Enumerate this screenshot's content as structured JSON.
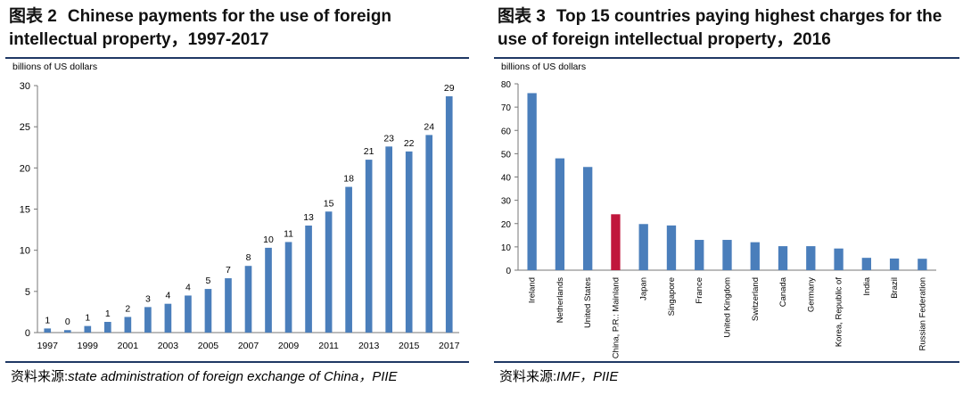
{
  "left_panel": {
    "figure_number": "图表 2",
    "title": "Chinese payments for the use of foreign intellectual property，1997-2017",
    "source_prefix": "资料来源:",
    "source_text": "state administration of foreign exchange of China，PIIE"
  },
  "right_panel": {
    "figure_number": "图表 3",
    "title": "Top 15 countries paying highest charges for the use of foreign intellectual property，2016",
    "source_prefix": "资料来源:",
    "source_text": "IMF，PIIE"
  },
  "colors": {
    "bar": "#4a7ebb",
    "highlight": "#c0163c",
    "rule": "#1f3864"
  },
  "chart_data": [
    {
      "type": "bar",
      "ylabel": "billions of US dollars",
      "ylim": [
        0,
        30
      ],
      "yticks": [
        0,
        5,
        10,
        15,
        20,
        25,
        30
      ],
      "x": [
        1997,
        1998,
        1999,
        2000,
        2001,
        2002,
        2003,
        2004,
        2005,
        2006,
        2007,
        2008,
        2009,
        2010,
        2011,
        2012,
        2013,
        2014,
        2015,
        2016,
        2017
      ],
      "xtick_labels": [
        "1997",
        "1999",
        "2001",
        "2003",
        "2005",
        "2007",
        "2009",
        "2011",
        "2013",
        "2015",
        "2017"
      ],
      "values": [
        0.5,
        0.3,
        0.8,
        1.3,
        1.9,
        3.1,
        3.5,
        4.5,
        5.3,
        6.6,
        8.1,
        10.3,
        11.0,
        13.0,
        14.7,
        17.7,
        21.0,
        22.6,
        22.0,
        24.0,
        28.7
      ],
      "data_labels": [
        "1",
        "0",
        "1",
        "1",
        "2",
        "3",
        "4",
        "4",
        "5",
        "7",
        "8",
        "10",
        "11",
        "13",
        "15",
        "18",
        "21",
        "23",
        "22",
        "24",
        "29"
      ],
      "data_label_show": [
        true,
        true,
        true,
        true,
        true,
        true,
        true,
        true,
        true,
        true,
        true,
        true,
        true,
        true,
        true,
        true,
        true,
        true,
        true,
        true,
        true
      ]
    },
    {
      "type": "bar",
      "ylabel": "billions of US dollars",
      "ylim": [
        0,
        80
      ],
      "yticks": [
        0,
        10,
        20,
        30,
        40,
        50,
        60,
        70,
        80
      ],
      "categories": [
        "Ireland",
        "Netherlands",
        "United States",
        "China, P.R.: Mainland",
        "Japan",
        "Singapore",
        "France",
        "United Kingdom",
        "Switzerland",
        "Canada",
        "Germany",
        "Korea, Republic of",
        "India",
        "Brazil",
        "Russian Federation"
      ],
      "values": [
        76,
        48,
        44.3,
        24,
        19.8,
        19.2,
        13,
        13,
        12,
        10.3,
        10.3,
        9.3,
        5.3,
        5,
        4.9
      ],
      "highlight_index": 3
    }
  ]
}
